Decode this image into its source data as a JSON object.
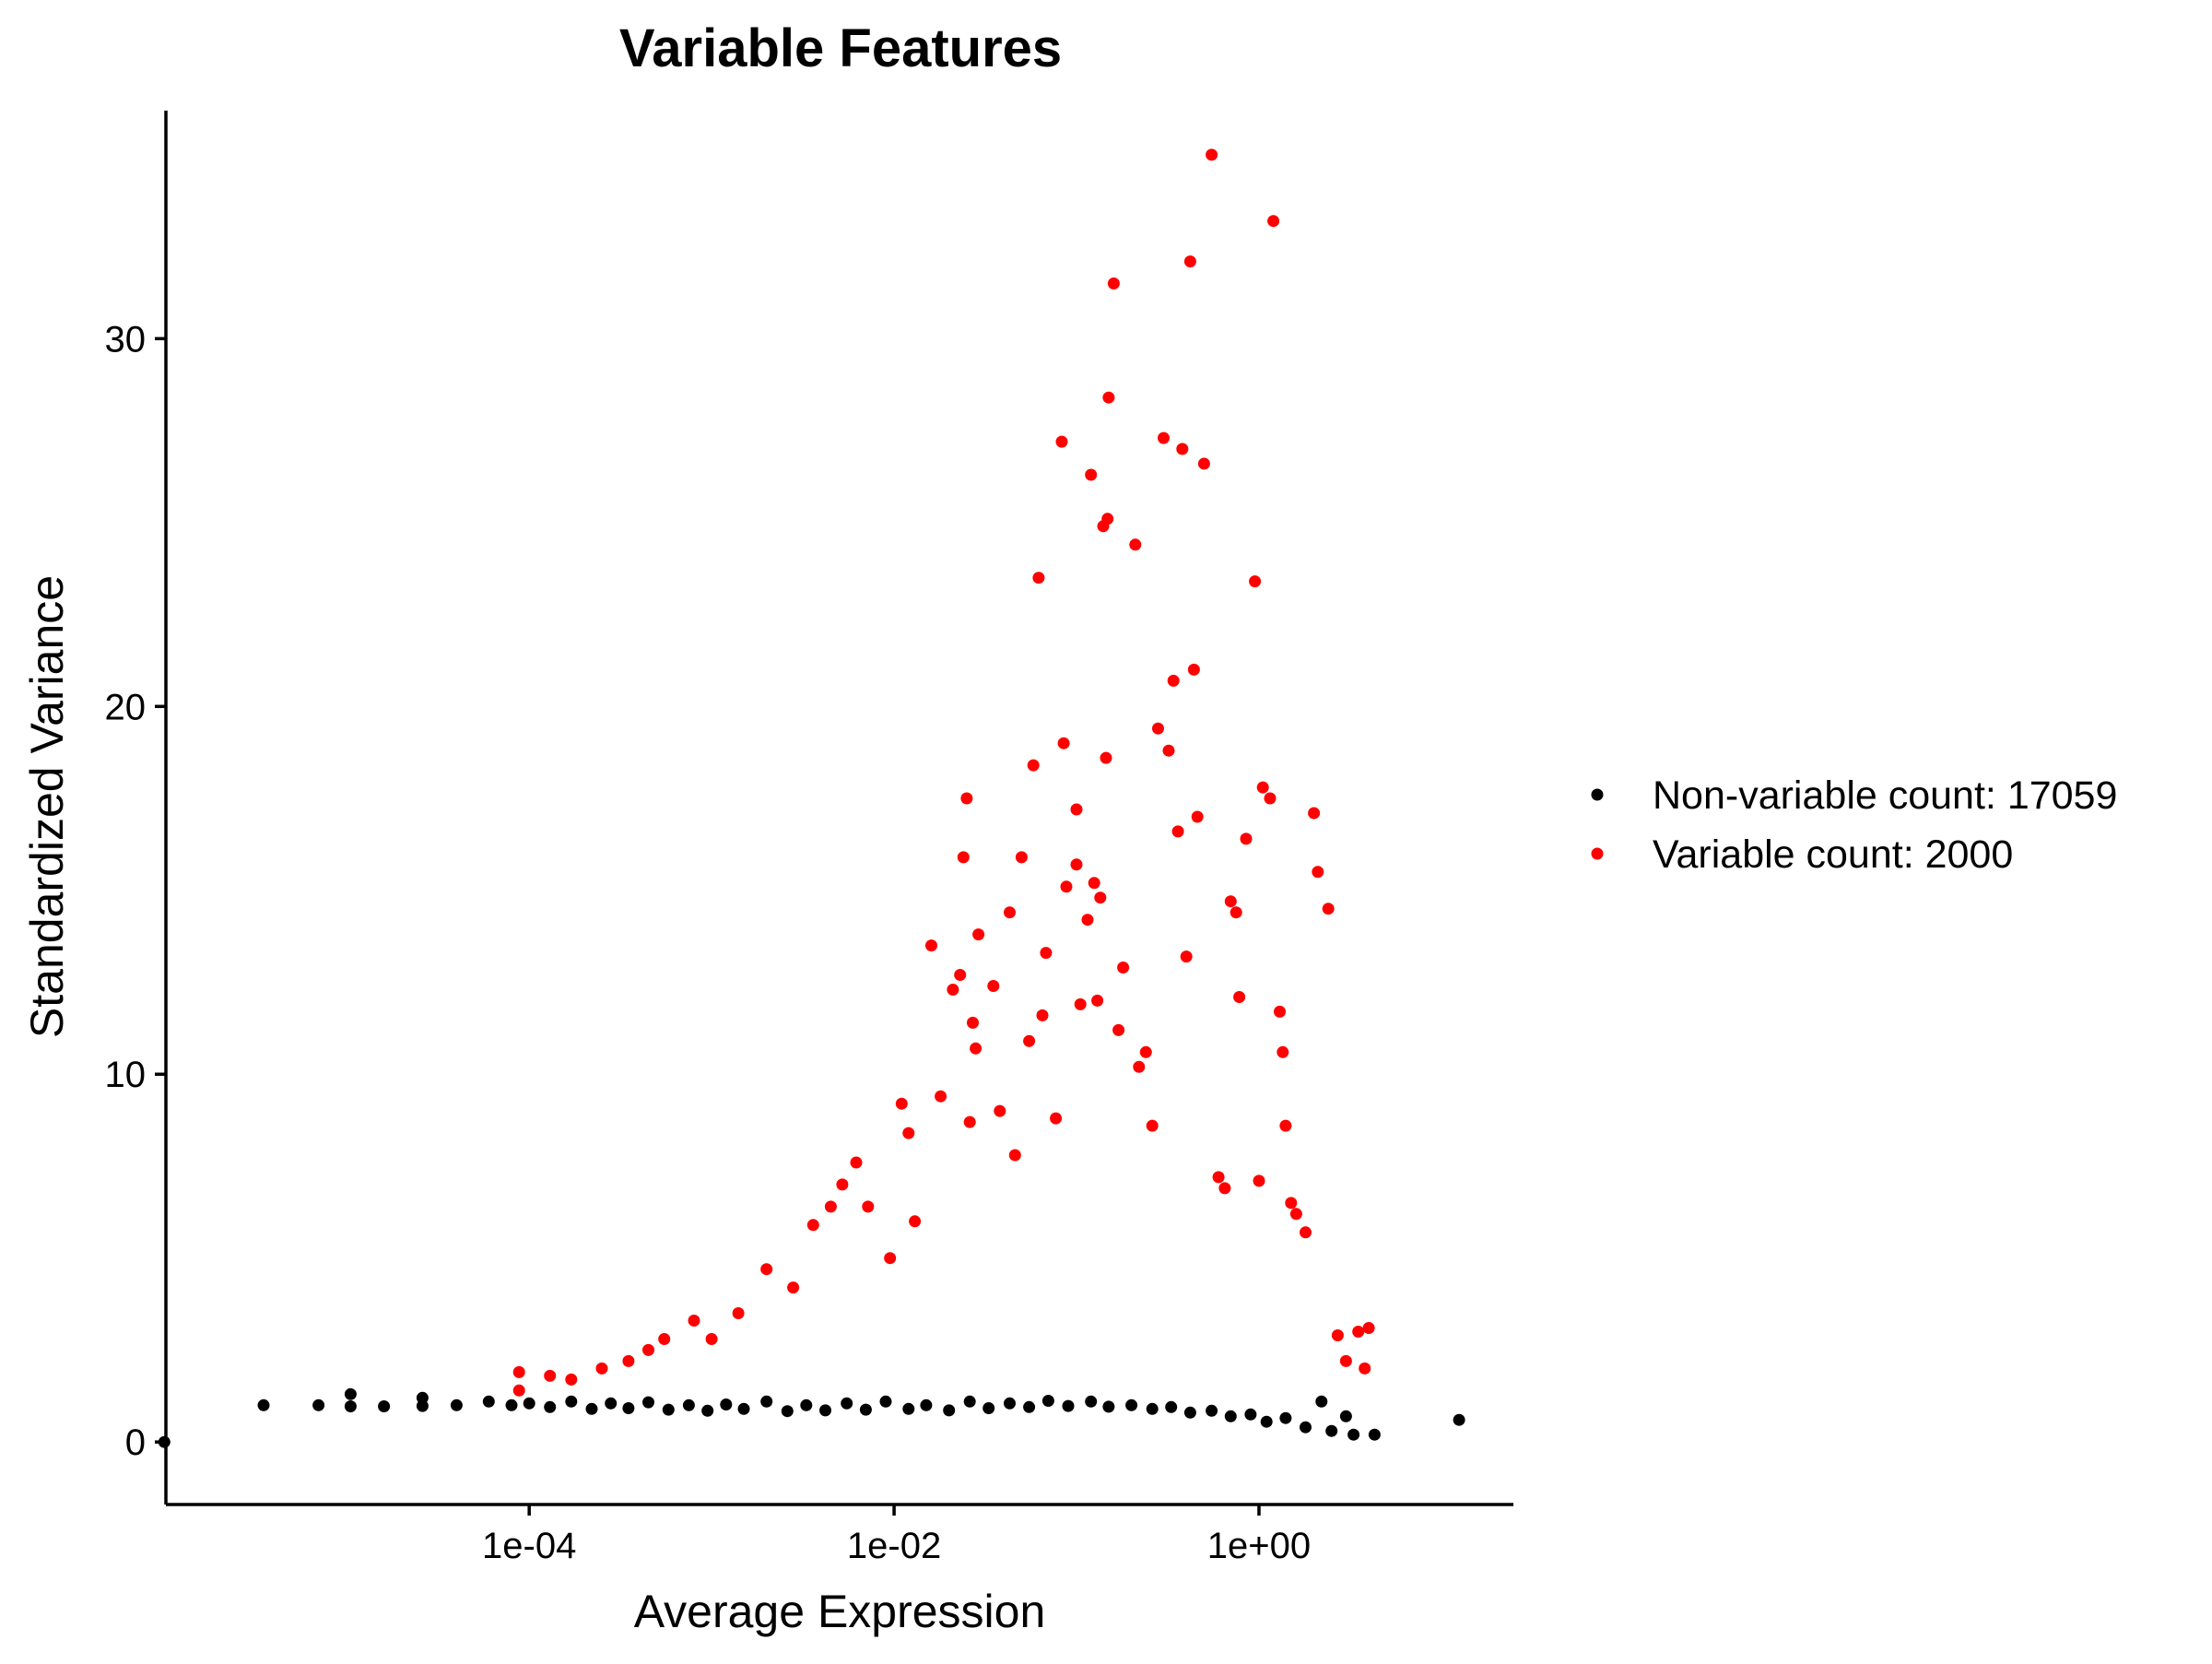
{
  "chart_data": {
    "type": "scatter",
    "title": "Variable Features",
    "xlabel": "Average Expression",
    "ylabel": "Standardized Variance",
    "x_scale": "log10",
    "xlim": [
      1.02e-06,
      24.8
    ],
    "ylim": [
      -1.7,
      36.2
    ],
    "x_ticks": [
      {
        "value": 0.0001,
        "label": "1e-04"
      },
      {
        "value": 0.01,
        "label": "1e-02"
      },
      {
        "value": 1,
        "label": "1e+00"
      }
    ],
    "y_ticks": [
      {
        "value": 0,
        "label": "0"
      },
      {
        "value": 10,
        "label": "10"
      },
      {
        "value": 20,
        "label": "20"
      },
      {
        "value": 30,
        "label": "30"
      }
    ],
    "grid": false,
    "legend_position": "right",
    "series": [
      {
        "name": "Non-variable count: 17059",
        "color": "#000000",
        "count": 17059,
        "points": [
          [
            1e-06,
            0.0
          ],
          [
            3.5e-06,
            1.0
          ],
          [
            7e-06,
            1.0
          ],
          [
            1.05e-05,
            0.97
          ],
          [
            1.05e-05,
            1.3
          ],
          [
            1.6e-05,
            0.97
          ],
          [
            2.6e-05,
            0.98
          ],
          [
            2.6e-05,
            1.2
          ],
          [
            4e-05,
            1.0
          ],
          [
            6e-05,
            1.1
          ],
          [
            8e-05,
            1.0
          ],
          [
            0.0001,
            1.05
          ],
          [
            0.00013,
            0.95
          ],
          [
            0.00017,
            1.1
          ],
          [
            0.00022,
            0.9
          ],
          [
            0.00028,
            1.05
          ],
          [
            0.00035,
            0.92
          ],
          [
            0.00045,
            1.08
          ],
          [
            0.00058,
            0.88
          ],
          [
            0.00075,
            1.0
          ],
          [
            0.00095,
            0.85
          ],
          [
            0.0012,
            1.02
          ],
          [
            0.0015,
            0.9
          ],
          [
            0.002,
            1.1
          ],
          [
            0.0026,
            0.84
          ],
          [
            0.0033,
            1.0
          ],
          [
            0.0042,
            0.86
          ],
          [
            0.0055,
            1.05
          ],
          [
            0.007,
            0.88
          ],
          [
            0.009,
            1.1
          ],
          [
            0.012,
            0.9
          ],
          [
            0.015,
            1.0
          ],
          [
            0.02,
            0.86
          ],
          [
            0.026,
            1.1
          ],
          [
            0.033,
            0.92
          ],
          [
            0.043,
            1.05
          ],
          [
            0.055,
            0.95
          ],
          [
            0.07,
            1.12
          ],
          [
            0.09,
            0.98
          ],
          [
            0.12,
            1.1
          ],
          [
            0.15,
            0.96
          ],
          [
            0.2,
            1.0
          ],
          [
            0.26,
            0.9
          ],
          [
            0.33,
            0.95
          ],
          [
            0.42,
            0.8
          ],
          [
            0.55,
            0.85
          ],
          [
            0.7,
            0.7
          ],
          [
            0.9,
            0.75
          ],
          [
            1.1,
            0.55
          ],
          [
            1.4,
            0.65
          ],
          [
            1.8,
            0.4
          ],
          [
            2.2,
            1.1
          ],
          [
            2.5,
            0.3
          ],
          [
            3.0,
            0.7
          ],
          [
            3.3,
            0.2
          ],
          [
            4.3,
            0.2
          ],
          [
            12.5,
            0.6
          ]
        ]
      },
      {
        "name": "Variable count: 2000",
        "color": "#ff0000",
        "count": 2000,
        "points": [
          [
            8.8e-05,
            1.9
          ],
          [
            8.8e-05,
            1.4
          ],
          [
            0.00013,
            1.8
          ],
          [
            0.00017,
            1.7
          ],
          [
            0.00025,
            2.0
          ],
          [
            0.00035,
            2.2
          ],
          [
            0.00045,
            2.5
          ],
          [
            0.00055,
            2.8
          ],
          [
            0.0008,
            3.3
          ],
          [
            0.001,
            2.8
          ],
          [
            0.0014,
            3.5
          ],
          [
            0.002,
            4.7
          ],
          [
            0.0028,
            4.2
          ],
          [
            0.0036,
            5.9
          ],
          [
            0.0045,
            6.4
          ],
          [
            0.0052,
            7.0
          ],
          [
            0.0062,
            7.6
          ],
          [
            0.0072,
            6.4
          ],
          [
            0.0095,
            5.0
          ],
          [
            0.011,
            9.2
          ],
          [
            0.012,
            8.4
          ],
          [
            0.013,
            6.0
          ],
          [
            0.016,
            13.5
          ],
          [
            0.018,
            9.4
          ],
          [
            0.021,
            12.3
          ],
          [
            0.023,
            12.7
          ],
          [
            0.024,
            15.9
          ],
          [
            0.025,
            17.5
          ],
          [
            0.026,
            8.7
          ],
          [
            0.027,
            11.4
          ],
          [
            0.028,
            10.7
          ],
          [
            0.029,
            13.8
          ],
          [
            0.035,
            12.4
          ],
          [
            0.038,
            9.0
          ],
          [
            0.043,
            14.4
          ],
          [
            0.046,
            7.8
          ],
          [
            0.05,
            15.9
          ],
          [
            0.055,
            10.9
          ],
          [
            0.058,
            18.4
          ],
          [
            0.062,
            23.5
          ],
          [
            0.065,
            11.6
          ],
          [
            0.068,
            13.3
          ],
          [
            0.077,
            8.8
          ],
          [
            0.083,
            27.2
          ],
          [
            0.085,
            19.0
          ],
          [
            0.088,
            15.1
          ],
          [
            0.1,
            17.2
          ],
          [
            0.1,
            15.7
          ],
          [
            0.105,
            11.9
          ],
          [
            0.115,
            14.2
          ],
          [
            0.12,
            26.3
          ],
          [
            0.125,
            15.2
          ],
          [
            0.13,
            12.0
          ],
          [
            0.135,
            14.8
          ],
          [
            0.14,
            24.9
          ],
          [
            0.145,
            18.6
          ],
          [
            0.148,
            25.1
          ],
          [
            0.15,
            28.4
          ],
          [
            0.16,
            31.5
          ],
          [
            0.17,
            11.2
          ],
          [
            0.18,
            12.9
          ],
          [
            0.21,
            24.4
          ],
          [
            0.22,
            10.2
          ],
          [
            0.24,
            10.6
          ],
          [
            0.26,
            8.6
          ],
          [
            0.28,
            19.4
          ],
          [
            0.3,
            27.3
          ],
          [
            0.32,
            18.8
          ],
          [
            0.34,
            20.7
          ],
          [
            0.36,
            16.6
          ],
          [
            0.38,
            27.0
          ],
          [
            0.4,
            13.2
          ],
          [
            0.42,
            32.1
          ],
          [
            0.44,
            21.0
          ],
          [
            0.46,
            17.0
          ],
          [
            0.5,
            26.6
          ],
          [
            0.55,
            35.0
          ],
          [
            0.6,
            7.2
          ],
          [
            0.65,
            6.9
          ],
          [
            0.7,
            14.7
          ],
          [
            0.75,
            14.4
          ],
          [
            0.78,
            12.1
          ],
          [
            0.85,
            16.4
          ],
          [
            0.95,
            23.4
          ],
          [
            1.0,
            7.1
          ],
          [
            1.05,
            17.8
          ],
          [
            1.15,
            17.5
          ],
          [
            1.2,
            33.2
          ],
          [
            1.3,
            11.7
          ],
          [
            1.35,
            10.6
          ],
          [
            1.4,
            8.6
          ],
          [
            1.5,
            6.5
          ],
          [
            1.6,
            6.2
          ],
          [
            1.8,
            5.7
          ],
          [
            2.0,
            17.1
          ],
          [
            2.1,
            15.5
          ],
          [
            2.4,
            14.5
          ],
          [
            2.7,
            2.9
          ],
          [
            3.0,
            2.2
          ],
          [
            3.5,
            3.0
          ],
          [
            3.8,
            2.0
          ],
          [
            4.0,
            3.1
          ]
        ]
      }
    ]
  }
}
